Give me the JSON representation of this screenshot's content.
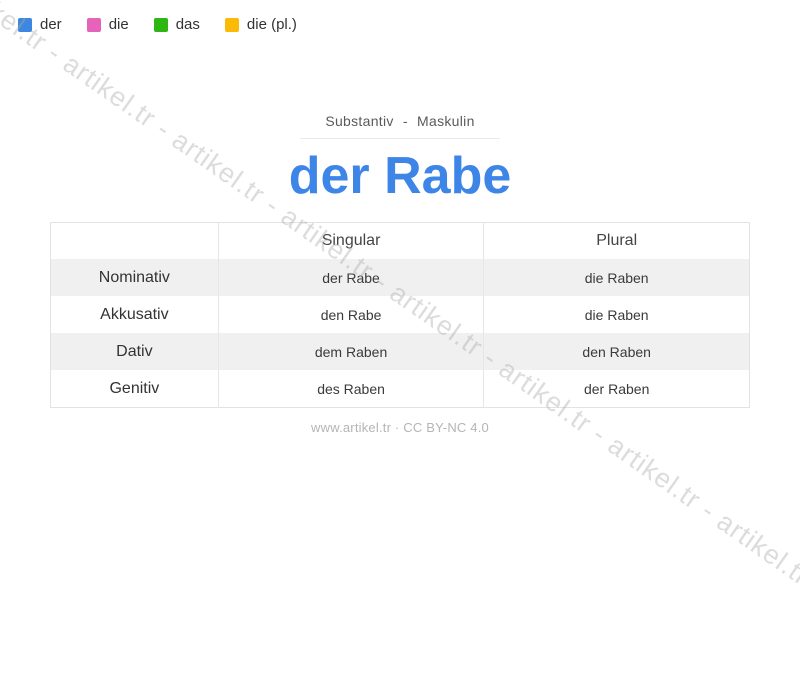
{
  "colors": {
    "legend_der": "#3d87e0",
    "legend_die": "#e763bb",
    "legend_das": "#2eb712",
    "legend_die_pl": "#fbba07",
    "title_blue": "#3d85e6",
    "highlight_blue": "#4a90e2",
    "highlight_yellow": "#f2c14e"
  },
  "watermark": {
    "text": "artikel.tr - artikel.tr - artikel.tr - artikel.tr - artikel.tr - artikel.tr - artikel.tr - artikel.tr - artikel.tr"
  },
  "legend": {
    "items": [
      {
        "label": "der"
      },
      {
        "label": "die"
      },
      {
        "label": "das"
      },
      {
        "label": "die (pl.)"
      }
    ]
  },
  "header": {
    "subtitle": "Substantiv - Maskulin",
    "title": "der Rabe"
  },
  "table": {
    "columns": [
      "",
      "Singular",
      "Plural"
    ],
    "rows": [
      {
        "case": "Nominativ",
        "singular": "der Rabe",
        "plural": "die Raben"
      },
      {
        "case": "Akkusativ",
        "singular": "den Rabe",
        "plural": "die Raben"
      },
      {
        "case": "Dativ",
        "singular": "dem Raben",
        "plural": "den Raben"
      },
      {
        "case": "Genitiv",
        "singular": "des Raben",
        "plural": "der Raben"
      }
    ]
  },
  "footer": {
    "text": "www.artikel.tr · CC BY-NC 4.0"
  }
}
